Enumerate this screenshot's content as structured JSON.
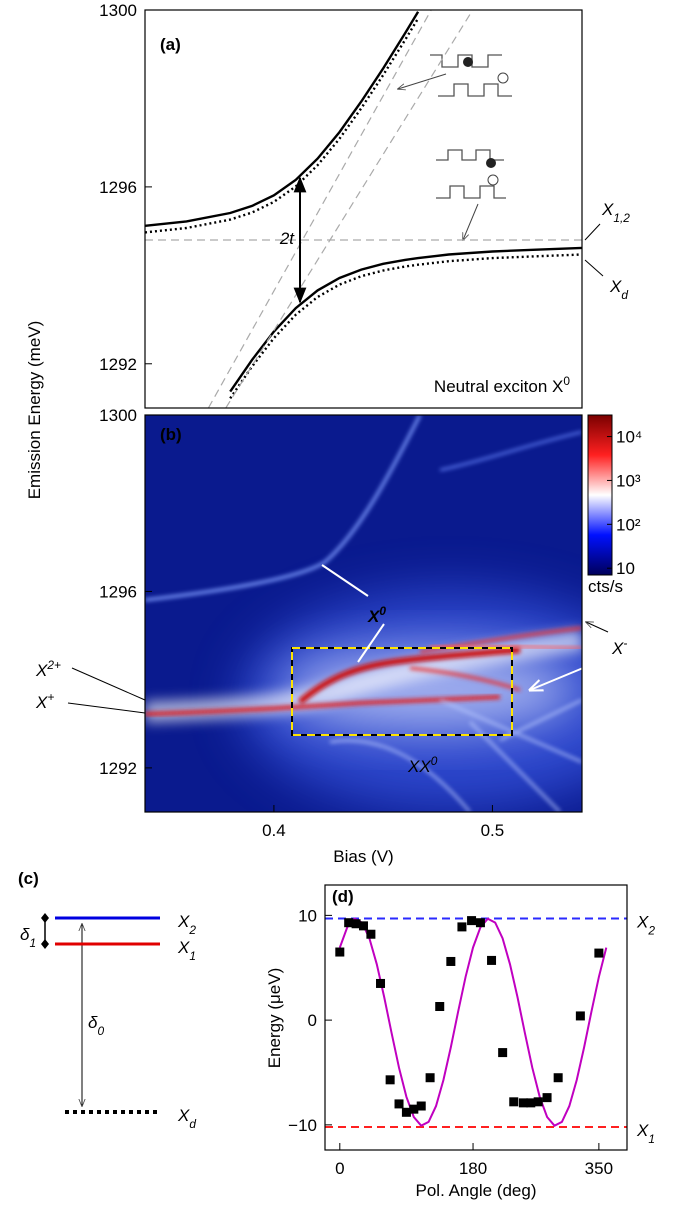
{
  "chart_data": [
    {
      "type": "line",
      "panel_label": "(a)",
      "x": [
        0.341,
        0.36,
        0.38,
        0.39,
        0.4,
        0.41,
        0.42,
        0.43,
        0.44,
        0.45,
        0.46,
        0.466,
        0.48,
        0.5,
        0.52,
        0.541
      ],
      "series": [
        {
          "color": "#000000",
          "dash": "solid",
          "values": [
            1295.12,
            1295.22,
            1295.41,
            1295.57,
            1295.81,
            1296.16,
            1296.64,
            1297.24,
            1297.93,
            1298.68,
            1299.47,
            1299.96,
            null,
            null,
            null,
            null
          ]
        },
        {
          "color": "#000000",
          "dash": "solid",
          "values": [
            null,
            null,
            1291.37,
            1292.09,
            1292.73,
            1293.26,
            1293.66,
            1293.94,
            1294.13,
            1294.26,
            1294.35,
            1294.39,
            1294.47,
            1294.54,
            1294.58,
            1294.62
          ]
        },
        {
          "color": "#000000",
          "dash": "dotted",
          "values": [
            1294.97,
            1295.07,
            1295.26,
            1295.42,
            1295.66,
            1296.01,
            1296.49,
            1297.09,
            1297.78,
            1298.53,
            1299.32,
            1299.81,
            null,
            null,
            null,
            null
          ]
        },
        {
          "color": "#000000",
          "dash": "dotted",
          "values": [
            null,
            null,
            1291.22,
            1291.94,
            1292.58,
            1293.11,
            1293.51,
            1293.79,
            1293.98,
            1294.11,
            1294.2,
            1294.24,
            1294.32,
            1294.39,
            1294.43,
            1294.47
          ]
        },
        {
          "color": "#aaaaaa",
          "dash": "dashed",
          "x": [
            0.341,
            0.541
          ],
          "values": [
            1294.8,
            1294.8
          ]
        },
        {
          "color": "#aaaaaa",
          "dash": "dashed",
          "x": [
            0.37,
            0.472
          ],
          "values": [
            1291,
            1300
          ]
        },
        {
          "color": "#aaaaaa",
          "dash": "dashed",
          "x": [
            0.378,
            0.491
          ],
          "values": [
            1291,
            1300
          ]
        }
      ],
      "xlim": [
        0.341,
        0.541
      ],
      "ylim": [
        1291,
        1300
      ],
      "yticks": [
        1292,
        1296,
        1300
      ],
      "annotations": {
        "splitting": "2t",
        "title": {
          "base": "Neutral exciton X",
          "sup": "0"
        },
        "upper_level": {
          "base": "X",
          "sub": "1,2"
        },
        "lower_level": {
          "base": "X",
          "sub": "d"
        }
      }
    },
    {
      "type": "heatmap",
      "panel_label": "(b)",
      "xlim": [
        0.341,
        0.541
      ],
      "ylim": [
        1291,
        1300
      ],
      "xticks": [
        0.4,
        0.5
      ],
      "yticks": [
        1292,
        1296,
        1300
      ],
      "xlabel": "Bias (V)",
      "ylabel": "Emission Energy (meV)",
      "colorbar": {
        "label": "cts/s",
        "log": true,
        "lim": [
          7,
          31000
        ],
        "ticks": [
          10,
          {
            "value": 100,
            "label": "10²"
          },
          {
            "value": 1000,
            "label": "10³"
          },
          {
            "value": 10000,
            "label": "10⁴"
          }
        ],
        "colors": [
          "#00005a",
          "#0010ff",
          "#ffffff",
          "#ff2020",
          "#7a0000"
        ]
      },
      "annotations": {
        "X0": {
          "base": "X",
          "sup": "0"
        },
        "Xminus": {
          "base": "X",
          "sup": "-"
        },
        "X2plus": {
          "base": "X",
          "sup": "2+"
        },
        "Xplus": {
          "base": "X",
          "sup": "+"
        },
        "XX0": {
          "base": "XX",
          "sup": "0"
        }
      }
    },
    {
      "type": "level-diagram",
      "panel_label": "(c)",
      "levels": [
        {
          "label": {
            "base": "X",
            "sub": "2"
          },
          "color": "#0000e0",
          "style": "solid"
        },
        {
          "label": {
            "base": "X",
            "sub": "1"
          },
          "color": "#e00000",
          "style": "solid"
        },
        {
          "label": {
            "base": "X",
            "sub": "d"
          },
          "color": "#000000",
          "style": "dotted"
        }
      ],
      "splittings": [
        {
          "base": "δ",
          "sub": "1"
        },
        {
          "base": "δ",
          "sub": "0"
        }
      ]
    },
    {
      "type": "scatter",
      "panel_label": "(d)",
      "xlim": [
        -20,
        388
      ],
      "ylim": [
        -12.4,
        12.9
      ],
      "xticks": [
        0,
        180,
        350
      ],
      "yticks": [
        {
          "value": -10,
          "label": "−10"
        },
        0,
        10
      ],
      "xlabel": "Pol. Angle (deg)",
      "ylabel": "Energy (μeV)",
      "points": {
        "color": "#000000",
        "x": [
          0,
          12,
          22,
          32,
          42,
          55,
          68,
          80,
          90,
          100,
          110,
          122,
          135,
          150,
          165,
          178,
          190,
          205,
          220,
          235,
          248,
          258,
          268,
          280,
          295,
          325,
          350
        ],
        "y": [
          6.5,
          9.3,
          9.2,
          9.0,
          8.2,
          3.5,
          -5.7,
          -8.0,
          -8.8,
          -8.5,
          -8.2,
          -5.5,
          1.3,
          5.6,
          8.9,
          9.5,
          9.3,
          5.7,
          -3.1,
          -7.8,
          -7.9,
          -7.9,
          -7.8,
          -7.4,
          -5.5,
          0.4,
          6.4
        ]
      },
      "fit": {
        "color": "#c000c0",
        "x": [
          0,
          10,
          20,
          30,
          40,
          50,
          60,
          70,
          80,
          90,
          100,
          110,
          120,
          130,
          140,
          150,
          160,
          170,
          180,
          190,
          200,
          210,
          220,
          230,
          240,
          250,
          260,
          270,
          280,
          290,
          300,
          310,
          320,
          330,
          340,
          350,
          360
        ],
        "values": [
          6.92,
          8.85,
          9.68,
          9.31,
          7.81,
          5.33,
          2.2,
          -1.24,
          -4.54,
          -7.32,
          -9.25,
          -10.08,
          -9.72,
          -8.21,
          -5.73,
          -2.6,
          0.84,
          4.14,
          6.92,
          8.85,
          9.68,
          9.31,
          7.81,
          5.33,
          2.2,
          -1.24,
          -4.54,
          -7.32,
          -9.25,
          -10.08,
          -9.72,
          -8.21,
          -5.73,
          -2.6,
          0.84,
          4.14,
          6.92
        ]
      },
      "hlines": [
        {
          "value": 9.7,
          "color": "#2a2aff",
          "label": {
            "base": "X",
            "sub": "2"
          }
        },
        {
          "value": -10.2,
          "color": "#ff2020",
          "label": {
            "base": "X",
            "sub": "1"
          }
        }
      ]
    }
  ]
}
